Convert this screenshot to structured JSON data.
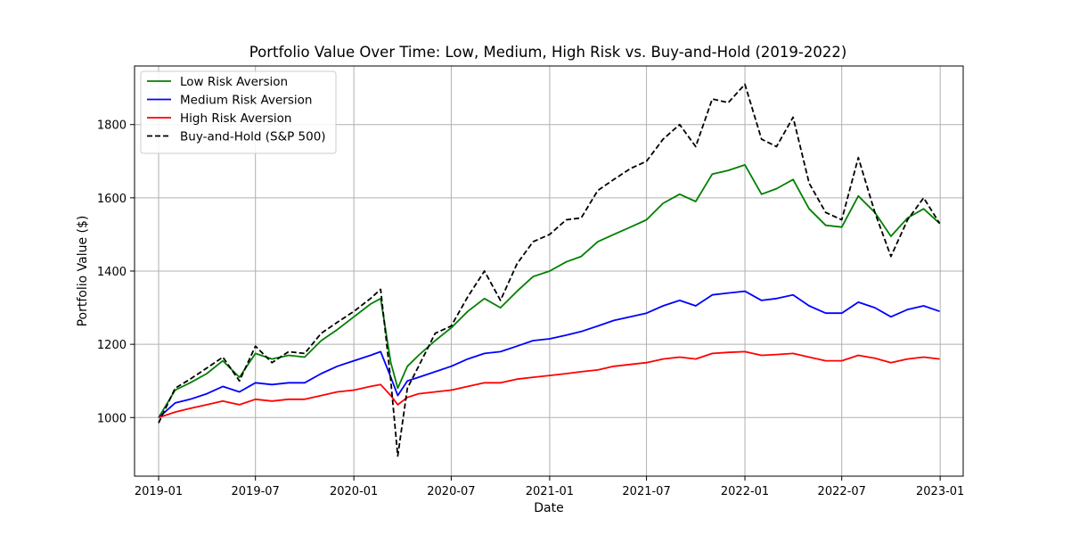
{
  "chart_data": {
    "type": "line",
    "title": "Portfolio Value Over Time: Low, Medium, High Risk vs. Buy-and-Hold (2019-2022)",
    "xlabel": "Date",
    "ylabel": "Portfolio Value ($)",
    "xlim": [
      "2018-11-17",
      "2023-02-13"
    ],
    "ylim": [
      840,
      1960
    ],
    "grid": true,
    "legend_position": "top-left",
    "x_ticks": [
      "2019-01",
      "2019-07",
      "2020-01",
      "2020-07",
      "2021-01",
      "2021-07",
      "2022-01",
      "2022-07",
      "2023-01"
    ],
    "y_ticks": [
      1000,
      1200,
      1400,
      1600,
      1800
    ],
    "series": [
      {
        "name": "Low Risk Aversion",
        "color": "#008000",
        "dash": "solid",
        "points": [
          [
            "2019-01-01",
            1000
          ],
          [
            "2019-02-01",
            1075
          ],
          [
            "2019-03-01",
            1095
          ],
          [
            "2019-04-01",
            1120
          ],
          [
            "2019-05-01",
            1155
          ],
          [
            "2019-06-01",
            1110
          ],
          [
            "2019-07-01",
            1175
          ],
          [
            "2019-08-01",
            1160
          ],
          [
            "2019-09-01",
            1170
          ],
          [
            "2019-10-01",
            1165
          ],
          [
            "2019-11-01",
            1210
          ],
          [
            "2019-12-01",
            1240
          ],
          [
            "2020-01-01",
            1275
          ],
          [
            "2020-02-01",
            1310
          ],
          [
            "2020-02-20",
            1325
          ],
          [
            "2020-03-10",
            1150
          ],
          [
            "2020-03-23",
            1080
          ],
          [
            "2020-04-10",
            1140
          ],
          [
            "2020-05-01",
            1170
          ],
          [
            "2020-06-01",
            1210
          ],
          [
            "2020-07-01",
            1245
          ],
          [
            "2020-08-01",
            1290
          ],
          [
            "2020-09-01",
            1325
          ],
          [
            "2020-10-01",
            1300
          ],
          [
            "2020-11-01",
            1345
          ],
          [
            "2020-12-01",
            1385
          ],
          [
            "2021-01-01",
            1400
          ],
          [
            "2021-02-01",
            1425
          ],
          [
            "2021-03-01",
            1440
          ],
          [
            "2021-04-01",
            1480
          ],
          [
            "2021-05-01",
            1500
          ],
          [
            "2021-06-01",
            1520
          ],
          [
            "2021-07-01",
            1540
          ],
          [
            "2021-08-01",
            1585
          ],
          [
            "2021-09-01",
            1610
          ],
          [
            "2021-10-01",
            1590
          ],
          [
            "2021-11-01",
            1665
          ],
          [
            "2021-12-01",
            1675
          ],
          [
            "2022-01-01",
            1690
          ],
          [
            "2022-02-01",
            1610
          ],
          [
            "2022-03-01",
            1625
          ],
          [
            "2022-04-01",
            1650
          ],
          [
            "2022-05-01",
            1570
          ],
          [
            "2022-06-01",
            1525
          ],
          [
            "2022-07-01",
            1520
          ],
          [
            "2022-08-01",
            1605
          ],
          [
            "2022-09-01",
            1560
          ],
          [
            "2022-10-01",
            1495
          ],
          [
            "2022-11-01",
            1545
          ],
          [
            "2022-12-01",
            1570
          ],
          [
            "2022-12-31",
            1530
          ]
        ]
      },
      {
        "name": "Medium Risk Aversion",
        "color": "#0000ff",
        "dash": "solid",
        "points": [
          [
            "2019-01-01",
            1000
          ],
          [
            "2019-02-01",
            1040
          ],
          [
            "2019-03-01",
            1050
          ],
          [
            "2019-04-01",
            1065
          ],
          [
            "2019-05-01",
            1085
          ],
          [
            "2019-06-01",
            1070
          ],
          [
            "2019-07-01",
            1095
          ],
          [
            "2019-08-01",
            1090
          ],
          [
            "2019-09-01",
            1095
          ],
          [
            "2019-10-01",
            1095
          ],
          [
            "2019-11-01",
            1120
          ],
          [
            "2019-12-01",
            1140
          ],
          [
            "2020-01-01",
            1155
          ],
          [
            "2020-02-01",
            1170
          ],
          [
            "2020-02-20",
            1180
          ],
          [
            "2020-03-10",
            1110
          ],
          [
            "2020-03-23",
            1060
          ],
          [
            "2020-04-10",
            1100
          ],
          [
            "2020-05-01",
            1110
          ],
          [
            "2020-06-01",
            1125
          ],
          [
            "2020-07-01",
            1140
          ],
          [
            "2020-08-01",
            1160
          ],
          [
            "2020-09-01",
            1175
          ],
          [
            "2020-10-01",
            1180
          ],
          [
            "2020-11-01",
            1195
          ],
          [
            "2020-12-01",
            1210
          ],
          [
            "2021-01-01",
            1215
          ],
          [
            "2021-02-01",
            1225
          ],
          [
            "2021-03-01",
            1235
          ],
          [
            "2021-04-01",
            1250
          ],
          [
            "2021-05-01",
            1265
          ],
          [
            "2021-06-01",
            1275
          ],
          [
            "2021-07-01",
            1285
          ],
          [
            "2021-08-01",
            1305
          ],
          [
            "2021-09-01",
            1320
          ],
          [
            "2021-10-01",
            1305
          ],
          [
            "2021-11-01",
            1335
          ],
          [
            "2021-12-01",
            1340
          ],
          [
            "2022-01-01",
            1345
          ],
          [
            "2022-02-01",
            1320
          ],
          [
            "2022-03-01",
            1325
          ],
          [
            "2022-04-01",
            1335
          ],
          [
            "2022-05-01",
            1305
          ],
          [
            "2022-06-01",
            1285
          ],
          [
            "2022-07-01",
            1285
          ],
          [
            "2022-08-01",
            1315
          ],
          [
            "2022-09-01",
            1300
          ],
          [
            "2022-10-01",
            1275
          ],
          [
            "2022-11-01",
            1295
          ],
          [
            "2022-12-01",
            1305
          ],
          [
            "2022-12-31",
            1290
          ]
        ]
      },
      {
        "name": "High Risk Aversion",
        "color": "#ff0000",
        "dash": "solid",
        "points": [
          [
            "2019-01-01",
            1000
          ],
          [
            "2019-02-01",
            1015
          ],
          [
            "2019-03-01",
            1025
          ],
          [
            "2019-04-01",
            1035
          ],
          [
            "2019-05-01",
            1045
          ],
          [
            "2019-06-01",
            1035
          ],
          [
            "2019-07-01",
            1050
          ],
          [
            "2019-08-01",
            1045
          ],
          [
            "2019-09-01",
            1050
          ],
          [
            "2019-10-01",
            1050
          ],
          [
            "2019-11-01",
            1060
          ],
          [
            "2019-12-01",
            1070
          ],
          [
            "2020-01-01",
            1075
          ],
          [
            "2020-02-01",
            1085
          ],
          [
            "2020-02-20",
            1090
          ],
          [
            "2020-03-10",
            1060
          ],
          [
            "2020-03-23",
            1035
          ],
          [
            "2020-04-10",
            1055
          ],
          [
            "2020-05-01",
            1065
          ],
          [
            "2020-06-01",
            1070
          ],
          [
            "2020-07-01",
            1075
          ],
          [
            "2020-08-01",
            1085
          ],
          [
            "2020-09-01",
            1095
          ],
          [
            "2020-10-01",
            1095
          ],
          [
            "2020-11-01",
            1105
          ],
          [
            "2020-12-01",
            1110
          ],
          [
            "2021-01-01",
            1115
          ],
          [
            "2021-02-01",
            1120
          ],
          [
            "2021-03-01",
            1125
          ],
          [
            "2021-04-01",
            1130
          ],
          [
            "2021-05-01",
            1140
          ],
          [
            "2021-06-01",
            1145
          ],
          [
            "2021-07-01",
            1150
          ],
          [
            "2021-08-01",
            1160
          ],
          [
            "2021-09-01",
            1165
          ],
          [
            "2021-10-01",
            1160
          ],
          [
            "2021-11-01",
            1175
          ],
          [
            "2021-12-01",
            1178
          ],
          [
            "2022-01-01",
            1180
          ],
          [
            "2022-02-01",
            1170
          ],
          [
            "2022-03-01",
            1172
          ],
          [
            "2022-04-01",
            1175
          ],
          [
            "2022-05-01",
            1165
          ],
          [
            "2022-06-01",
            1155
          ],
          [
            "2022-07-01",
            1155
          ],
          [
            "2022-08-01",
            1170
          ],
          [
            "2022-09-01",
            1162
          ],
          [
            "2022-10-01",
            1150
          ],
          [
            "2022-11-01",
            1160
          ],
          [
            "2022-12-01",
            1165
          ],
          [
            "2022-12-31",
            1160
          ]
        ]
      },
      {
        "name": "Buy-and-Hold (S&P 500)",
        "color": "#000000",
        "dash": "dashed",
        "points": [
          [
            "2019-01-01",
            985
          ],
          [
            "2019-02-01",
            1080
          ],
          [
            "2019-03-01",
            1105
          ],
          [
            "2019-04-01",
            1135
          ],
          [
            "2019-05-01",
            1165
          ],
          [
            "2019-06-01",
            1100
          ],
          [
            "2019-07-01",
            1195
          ],
          [
            "2019-08-01",
            1150
          ],
          [
            "2019-09-01",
            1180
          ],
          [
            "2019-10-01",
            1175
          ],
          [
            "2019-11-01",
            1230
          ],
          [
            "2019-12-01",
            1260
          ],
          [
            "2020-01-01",
            1290
          ],
          [
            "2020-02-01",
            1325
          ],
          [
            "2020-02-20",
            1350
          ],
          [
            "2020-03-10",
            1100
          ],
          [
            "2020-03-23",
            895
          ],
          [
            "2020-04-10",
            1080
          ],
          [
            "2020-05-01",
            1140
          ],
          [
            "2020-06-01",
            1230
          ],
          [
            "2020-07-01",
            1250
          ],
          [
            "2020-08-01",
            1330
          ],
          [
            "2020-09-01",
            1400
          ],
          [
            "2020-10-01",
            1320
          ],
          [
            "2020-11-01",
            1420
          ],
          [
            "2020-12-01",
            1480
          ],
          [
            "2021-01-01",
            1500
          ],
          [
            "2021-02-01",
            1540
          ],
          [
            "2021-03-01",
            1545
          ],
          [
            "2021-04-01",
            1620
          ],
          [
            "2021-05-01",
            1650
          ],
          [
            "2021-06-01",
            1680
          ],
          [
            "2021-07-01",
            1700
          ],
          [
            "2021-08-01",
            1760
          ],
          [
            "2021-09-01",
            1800
          ],
          [
            "2021-10-01",
            1740
          ],
          [
            "2021-11-01",
            1870
          ],
          [
            "2021-12-01",
            1860
          ],
          [
            "2022-01-01",
            1910
          ],
          [
            "2022-02-01",
            1760
          ],
          [
            "2022-03-01",
            1740
          ],
          [
            "2022-04-01",
            1820
          ],
          [
            "2022-05-01",
            1640
          ],
          [
            "2022-06-01",
            1560
          ],
          [
            "2022-07-01",
            1540
          ],
          [
            "2022-08-01",
            1710
          ],
          [
            "2022-09-01",
            1560
          ],
          [
            "2022-10-01",
            1440
          ],
          [
            "2022-11-01",
            1540
          ],
          [
            "2022-12-01",
            1600
          ],
          [
            "2022-12-31",
            1530
          ]
        ]
      }
    ]
  }
}
